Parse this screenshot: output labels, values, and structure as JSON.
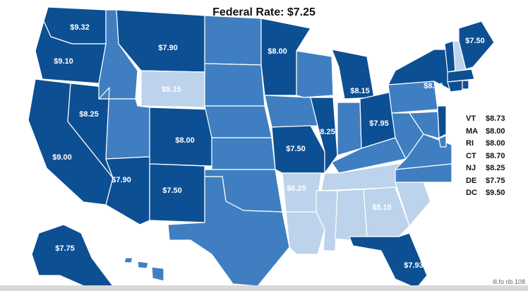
{
  "title": "Federal Rate: $7.25",
  "colors": {
    "dark": "#0d4f93",
    "mid": "#3f7fc1",
    "light": "#6f9fd3",
    "pale": "#bdd3ec",
    "border": "#ffffff"
  },
  "state_labels": [
    {
      "id": "WA",
      "text": "$9.32"
    },
    {
      "id": "OR",
      "text": "$9.10"
    },
    {
      "id": "CA",
      "text": "$9.00"
    },
    {
      "id": "NV",
      "text": "$8.25"
    },
    {
      "id": "MT",
      "text": "$7.90"
    },
    {
      "id": "WY",
      "text": "$5.15"
    },
    {
      "id": "CO",
      "text": "$8.00"
    },
    {
      "id": "AZ",
      "text": "$7.90"
    },
    {
      "id": "NM",
      "text": "$7.50"
    },
    {
      "id": "MN",
      "text": "$8.00"
    },
    {
      "id": "MO",
      "text": "$7.50"
    },
    {
      "id": "IL",
      "text": "$8.25"
    },
    {
      "id": "AR",
      "text": "$6.25"
    },
    {
      "id": "MI",
      "text": "$8.15"
    },
    {
      "id": "OH",
      "text": "$7.95"
    },
    {
      "id": "GA",
      "text": "$5.15"
    },
    {
      "id": "FL",
      "text": "$7.93"
    },
    {
      "id": "NY",
      "text": "$8.00"
    },
    {
      "id": "ME",
      "text": "$7.50"
    },
    {
      "id": "AK",
      "text": "$7.75"
    }
  ],
  "legend": [
    {
      "abbr": "VT",
      "value": "$8.73"
    },
    {
      "abbr": "MA",
      "value": "$8.00"
    },
    {
      "abbr": "RI",
      "value": "$8.00"
    },
    {
      "abbr": "CT",
      "value": "$8.70"
    },
    {
      "abbr": "NJ",
      "value": "$8.25"
    },
    {
      "abbr": "DE",
      "value": "$7.75"
    },
    {
      "abbr": "DC",
      "value": "$9.50"
    }
  ],
  "watermark": "ill.fo rib 108"
}
